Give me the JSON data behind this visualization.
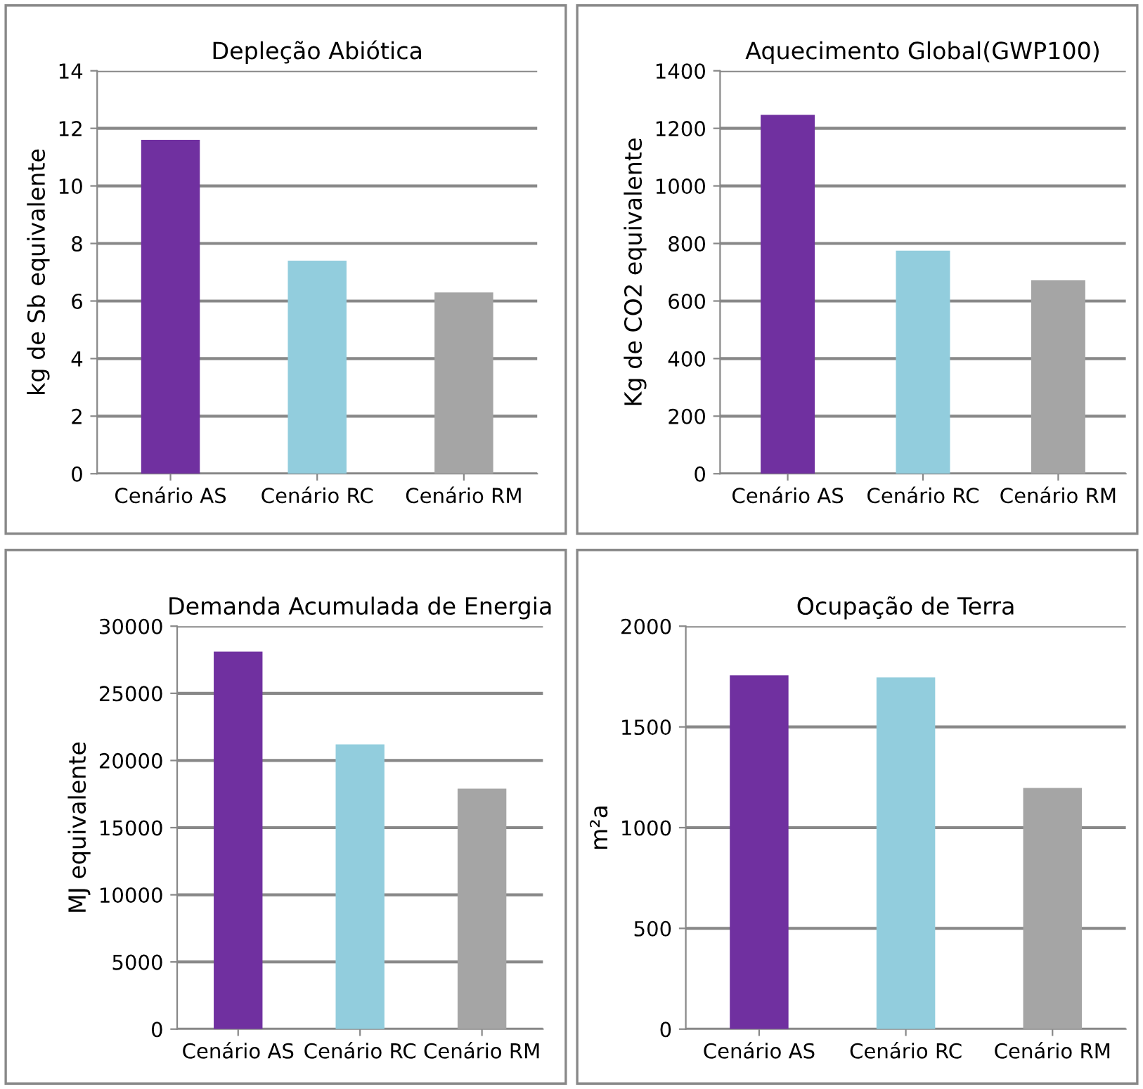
{
  "chart_data": [
    {
      "type": "bar",
      "title": "Depleção Abiótica",
      "ylabel": "kg de Sb equivalente",
      "categories": [
        "Cenário AS",
        "Cenário RC",
        "Cenário RM"
      ],
      "values": [
        11.6,
        7.4,
        6.3
      ],
      "colors": [
        "#7030a0",
        "#92cddd",
        "#a5a5a5"
      ],
      "ylim": [
        0,
        14
      ],
      "yticks": [
        0,
        2,
        4,
        6,
        8,
        10,
        12,
        14
      ],
      "grid": "y"
    },
    {
      "type": "bar",
      "title": "Aquecimento Global(GWP100)",
      "ylabel": "Kg de CO2 equivalente",
      "categories": [
        "Cenário AS",
        "Cenário RC",
        "Cenário RM"
      ],
      "values": [
        1247,
        775,
        672
      ],
      "colors": [
        "#7030a0",
        "#92cddd",
        "#a5a5a5"
      ],
      "ylim": [
        0,
        1400
      ],
      "yticks": [
        0,
        200,
        400,
        600,
        800,
        1000,
        1200,
        1400
      ],
      "grid": "y"
    },
    {
      "type": "bar",
      "title": "Demanda Acumulada de Energia",
      "ylabel": "MJ equivalente",
      "categories": [
        "Cenário AS",
        "Cenário RC",
        "Cenário RM"
      ],
      "values": [
        28100,
        21200,
        17900
      ],
      "colors": [
        "#7030a0",
        "#92cddd",
        "#a5a5a5"
      ],
      "ylim": [
        0,
        30000
      ],
      "yticks": [
        0,
        5000,
        10000,
        15000,
        20000,
        25000,
        30000
      ],
      "grid": "y"
    },
    {
      "type": "bar",
      "title": "Ocupação de Terra",
      "ylabel": "m²a",
      "categories": [
        "Cenário AS",
        "Cenário RC",
        "Cenário RM"
      ],
      "values": [
        1756,
        1745,
        1197
      ],
      "colors": [
        "#7030a0",
        "#92cddd",
        "#a5a5a5"
      ],
      "ylim": [
        0,
        2000
      ],
      "yticks": [
        0,
        500,
        1000,
        1500,
        2000
      ],
      "grid": "y"
    }
  ]
}
